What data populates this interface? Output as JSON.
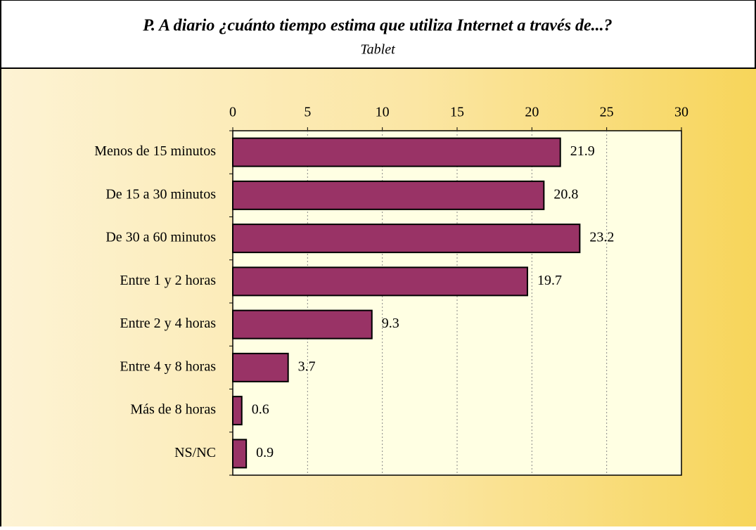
{
  "chart_data": {
    "type": "bar",
    "orientation": "horizontal",
    "title": "P. A diario ¿cuánto tiempo estima que utiliza Internet a través de...?",
    "subtitle": "Tablet",
    "categories": [
      "Menos de 15 minutos",
      "De 15 a 30 minutos",
      "De 30 a 60 minutos",
      "Entre 1 y 2 horas",
      "Entre 2 y 4 horas",
      "Entre 4 y 8 horas",
      "Más de 8 horas",
      "NS/NC"
    ],
    "values": [
      21.9,
      20.8,
      23.2,
      19.7,
      9.3,
      3.7,
      0.6,
      0.9
    ],
    "color": "#993366",
    "xlim": [
      0,
      30
    ],
    "xticks": [
      0,
      5,
      10,
      15,
      20,
      25,
      30
    ],
    "grid": true
  }
}
